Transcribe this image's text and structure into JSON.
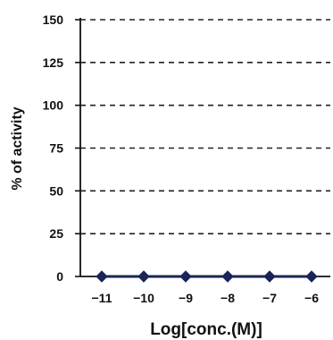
{
  "chart_data": {
    "type": "line",
    "title": "",
    "xlabel": "Log[conc.(M)]",
    "ylabel": "% of activity",
    "x": [
      -11,
      -10,
      -9,
      -8,
      -7,
      -6
    ],
    "x_tick_labels": [
      "-11",
      "-10",
      "-9",
      "-8",
      "-7",
      "-6"
    ],
    "y_ticks": [
      0,
      25,
      50,
      75,
      100,
      125,
      150
    ],
    "y_tick_labels": [
      "0",
      "25",
      "50",
      "75",
      "100",
      "125",
      "150"
    ],
    "ylim": [
      0,
      150
    ],
    "series": [
      {
        "values": [
          0,
          0,
          0,
          0,
          0,
          0
        ],
        "marker": "diamond",
        "color": "#1a2456"
      }
    ],
    "grid": {
      "horizontal": true,
      "style": "dashed"
    },
    "legend": "none",
    "colors": {
      "axis": "#111111",
      "grid": "#222222",
      "series": "#1a2456"
    }
  }
}
